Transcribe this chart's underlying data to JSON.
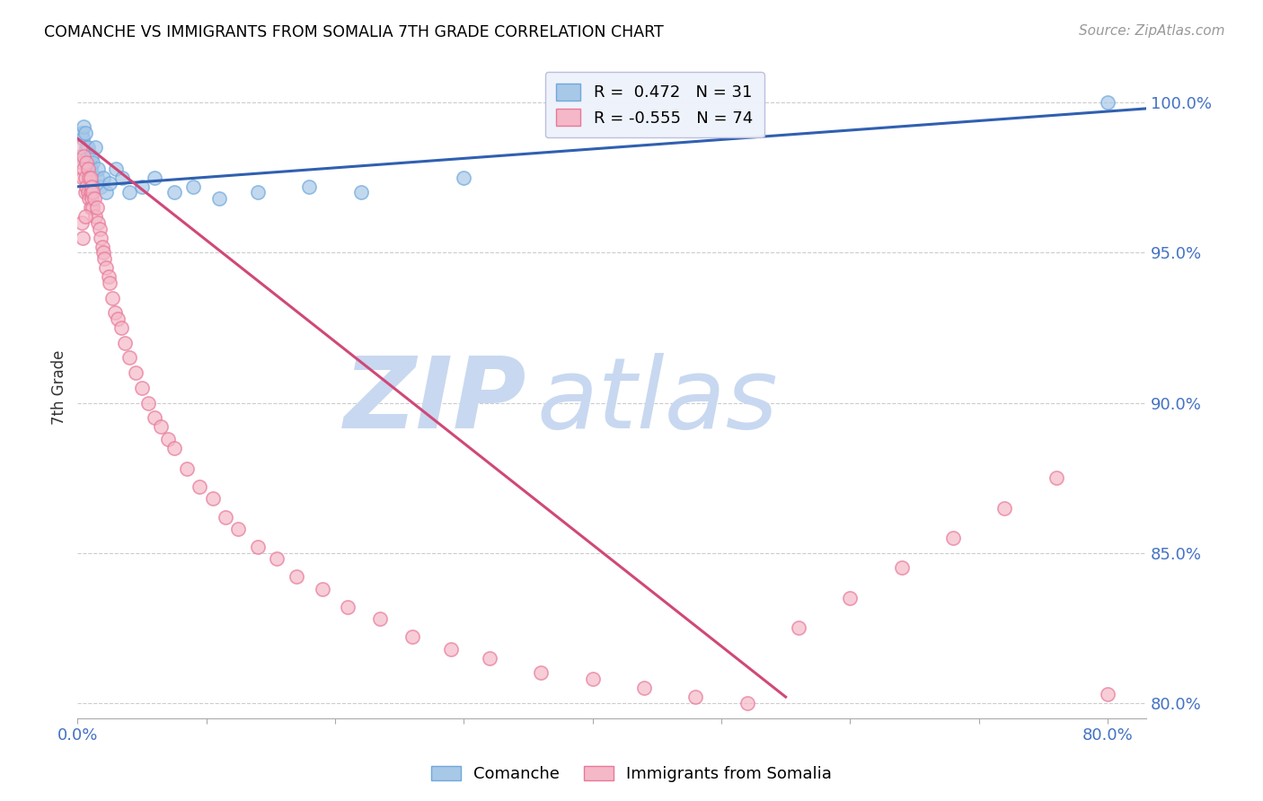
{
  "title": "COMANCHE VS IMMIGRANTS FROM SOMALIA 7TH GRADE CORRELATION CHART",
  "source": "Source: ZipAtlas.com",
  "ylabel": "7th Grade",
  "yticks": [
    80.0,
    85.0,
    90.0,
    95.0,
    100.0
  ],
  "xticks_positions": [
    0.0,
    10.0,
    20.0,
    30.0,
    40.0,
    50.0,
    60.0,
    70.0,
    80.0
  ],
  "xticks_labels": [
    "0.0%",
    "",
    "",
    "",
    "",
    "",
    "",
    "",
    "80.0%"
  ],
  "xlim": [
    0.0,
    83.0
  ],
  "ylim": [
    79.5,
    101.5
  ],
  "comanche_R": 0.472,
  "comanche_N": 31,
  "somalia_R": -0.555,
  "somalia_N": 74,
  "comanche_color": "#a8c8e8",
  "comanche_edge_color": "#6fa8dc",
  "somalia_color": "#f4b8c8",
  "somalia_edge_color": "#e87898",
  "comanche_line_color": "#3060b0",
  "somalia_line_color": "#d04878",
  "watermark_zip": "ZIP",
  "watermark_atlas": "atlas",
  "watermark_color": "#c8d8f0",
  "background_color": "#ffffff",
  "grid_color": "#cccccc",
  "axis_label_color": "#4472c4",
  "title_color": "#000000",
  "comanche_x": [
    0.2,
    0.3,
    0.4,
    0.5,
    0.6,
    0.7,
    0.8,
    0.9,
    1.0,
    1.1,
    1.2,
    1.4,
    1.5,
    1.6,
    1.8,
    2.0,
    2.2,
    2.5,
    3.0,
    3.5,
    4.0,
    5.0,
    6.0,
    7.5,
    9.0,
    11.0,
    14.0,
    18.0,
    22.0,
    30.0,
    80.0
  ],
  "comanche_y": [
    98.2,
    99.0,
    98.8,
    99.2,
    99.0,
    98.5,
    98.5,
    98.0,
    97.8,
    98.2,
    98.0,
    98.5,
    97.5,
    97.8,
    97.2,
    97.5,
    97.0,
    97.3,
    97.8,
    97.5,
    97.0,
    97.2,
    97.5,
    97.0,
    97.2,
    96.8,
    97.0,
    97.2,
    97.0,
    97.5,
    100.0
  ],
  "somalia_x": [
    0.2,
    0.3,
    0.4,
    0.5,
    0.5,
    0.6,
    0.6,
    0.7,
    0.7,
    0.8,
    0.8,
    0.9,
    0.9,
    1.0,
    1.0,
    1.0,
    1.1,
    1.1,
    1.2,
    1.2,
    1.3,
    1.4,
    1.5,
    1.6,
    1.7,
    1.8,
    1.9,
    2.0,
    2.1,
    2.2,
    2.4,
    2.5,
    2.7,
    2.9,
    3.1,
    3.4,
    3.7,
    4.0,
    4.5,
    5.0,
    5.5,
    6.0,
    6.5,
    7.0,
    7.5,
    8.5,
    9.5,
    10.5,
    11.5,
    12.5,
    14.0,
    15.5,
    17.0,
    19.0,
    21.0,
    23.5,
    26.0,
    29.0,
    32.0,
    36.0,
    40.0,
    44.0,
    48.0,
    52.0,
    56.0,
    60.0,
    64.0,
    68.0,
    72.0,
    76.0,
    80.0,
    0.3,
    0.4,
    0.6
  ],
  "somalia_y": [
    98.5,
    98.0,
    97.5,
    98.2,
    97.8,
    97.5,
    97.0,
    98.0,
    97.2,
    97.8,
    97.0,
    97.5,
    96.8,
    97.5,
    97.0,
    96.5,
    97.2,
    96.8,
    97.0,
    96.5,
    96.8,
    96.2,
    96.5,
    96.0,
    95.8,
    95.5,
    95.2,
    95.0,
    94.8,
    94.5,
    94.2,
    94.0,
    93.5,
    93.0,
    92.8,
    92.5,
    92.0,
    91.5,
    91.0,
    90.5,
    90.0,
    89.5,
    89.2,
    88.8,
    88.5,
    87.8,
    87.2,
    86.8,
    86.2,
    85.8,
    85.2,
    84.8,
    84.2,
    83.8,
    83.2,
    82.8,
    82.2,
    81.8,
    81.5,
    81.0,
    80.8,
    80.5,
    80.2,
    80.0,
    82.5,
    83.5,
    84.5,
    85.5,
    86.5,
    87.5,
    80.3,
    96.0,
    95.5,
    96.2
  ],
  "comanche_line_x0": 0.0,
  "comanche_line_y0": 97.2,
  "comanche_line_x1": 83.0,
  "comanche_line_y1": 99.8,
  "somalia_line_x0": 0.0,
  "somalia_line_y0": 98.8,
  "somalia_line_x1": 55.0,
  "somalia_line_y1": 80.2
}
